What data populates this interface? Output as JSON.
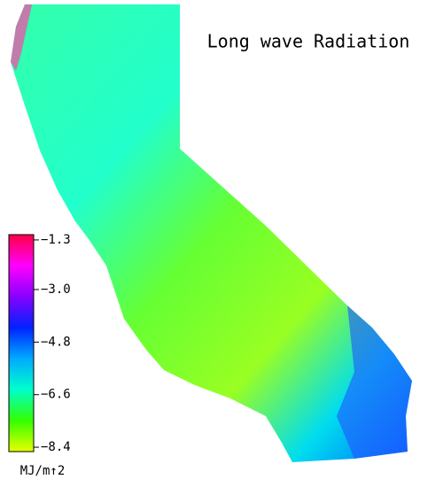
{
  "map": {
    "title": "Long wave Radiation",
    "colorbar": {
      "label": "MJ/m↑2",
      "lim": [
        -8.55,
        -1.12
      ],
      "colors": [
        "#e8ff00",
        "#33ff00",
        "#00ffcc",
        "#00aaff",
        "#0022ff",
        "#8800ff",
        "#ff00ff",
        "#ff0044"
      ],
      "ticks": [
        {
          "value": -1.3,
          "label": "−1.3"
        },
        {
          "value": -3.0,
          "label": "−3.0"
        },
        {
          "value": -4.8,
          "label": "−4.8"
        },
        {
          "value": -6.6,
          "label": "−6.6"
        },
        {
          "value": -8.4,
          "label": "−8.4"
        }
      ]
    }
  }
}
